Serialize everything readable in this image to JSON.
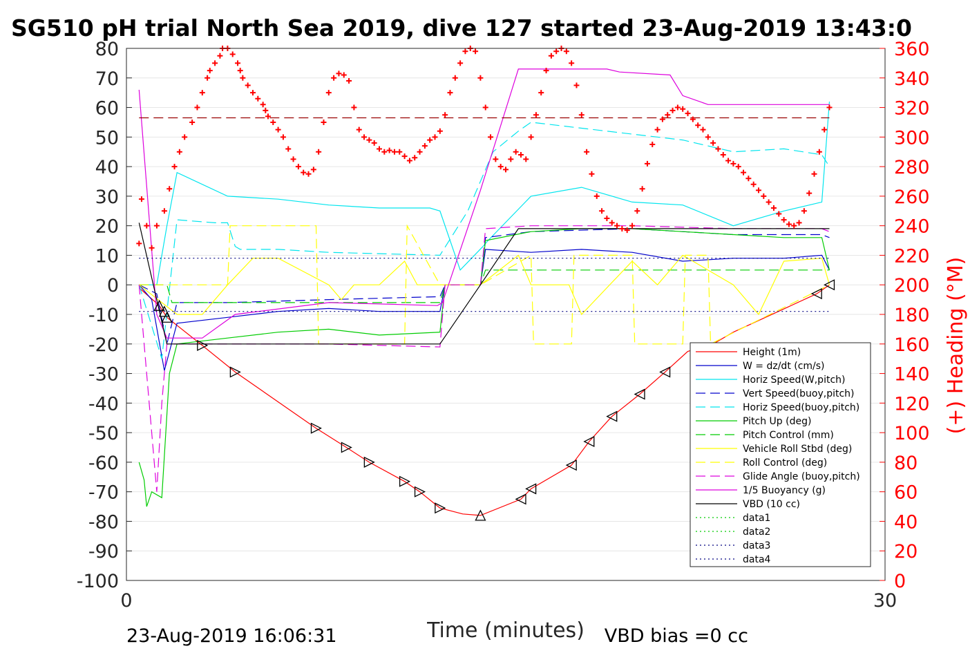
{
  "chart_data": {
    "type": "line",
    "title": "SG510 pH trial North Sea 2019, dive 127 started 23-Aug-2019 13:43:0",
    "xlabel": "Time (minutes)",
    "ylabel": "",
    "ylabel_right": "(+) Heading (°M)",
    "xlim": [
      0,
      30
    ],
    "ylim": [
      -100,
      80
    ],
    "ylim_right": [
      0,
      360
    ],
    "x_ticks": [
      "0",
      "30"
    ],
    "y_ticks": [
      "80",
      "70",
      "60",
      "50",
      "40",
      "30",
      "20",
      "10",
      "0",
      "-10",
      "-20",
      "-30",
      "-40",
      "-50",
      "-60",
      "-70",
      "-80",
      "-90",
      "-100"
    ],
    "y_ticks_right": [
      "360",
      "340",
      "320",
      "300",
      "280",
      "260",
      "240",
      "220",
      "200",
      "180",
      "160",
      "140",
      "120",
      "100",
      "80",
      "60",
      "40",
      "20",
      "0"
    ],
    "grid": "horizontal",
    "legend_position": "bottom-right",
    "footer_left": "23-Aug-2019 16:06:31",
    "footer_right": "VBD bias =0 cc",
    "colors": {
      "red": "#ff0000",
      "blue": "#0000cc",
      "cyan": "#00e5ee",
      "green": "#00cc00",
      "yellow": "#ffff00",
      "magenta": "#dd00dd",
      "black": "#000000",
      "darkred": "#990000",
      "navy": "#000080"
    },
    "series": [
      {
        "name": "Height (1m)",
        "color": "#ff0000",
        "style": "solid",
        "x": [
          0.5,
          1.3,
          1.6,
          3.0,
          4.3,
          7.5,
          8.7,
          9.6,
          11.0,
          11.6,
          12.4,
          13.3,
          14.0,
          15.6,
          16.0,
          17.6,
          18.3,
          19.2,
          20.3,
          21.3,
          22.2,
          23.2,
          24.0,
          27.3,
          27.8
        ],
        "y": [
          -1,
          -7,
          -11,
          -20.5,
          -29.5,
          -48.5,
          -55,
          -60,
          -66.5,
          -70,
          -75.5,
          -77.5,
          -78,
          -72.5,
          -69,
          -61,
          -53,
          -44.5,
          -37,
          -29.5,
          -22.5,
          -20,
          -16,
          -3,
          0
        ]
      },
      {
        "name": "W = dz/dt (cm/s)",
        "color": "#0000cc",
        "style": "solid",
        "x": [
          0.5,
          1.0,
          1.5,
          2.0,
          4.0,
          6.0,
          8.0,
          10.0,
          12.0,
          12.4,
          12.6,
          14.0,
          14.2,
          16.0,
          18.0,
          20.0,
          22.0,
          24.0,
          26.0,
          27.5,
          27.8
        ],
        "y": [
          0,
          -5,
          -29,
          -13,
          -11,
          -9,
          -8,
          -9,
          -9,
          -9,
          0,
          0,
          12,
          11,
          12,
          11,
          8,
          9,
          9,
          10,
          5
        ]
      },
      {
        "name": "Horiz Speed(W,pitch)",
        "color": "#00e5ee",
        "style": "solid",
        "x": [
          0.5,
          1.2,
          1.6,
          2.0,
          4.0,
          6.0,
          8.0,
          10.0,
          12.0,
          12.4,
          13.2,
          14.1,
          14.3,
          16.0,
          18.0,
          20.0,
          22.0,
          24.0,
          26.0,
          27.5,
          27.8
        ],
        "y": [
          0,
          0,
          20,
          38,
          30,
          29,
          27,
          26,
          26,
          25,
          5,
          13,
          15,
          30,
          33,
          28,
          27,
          20,
          25,
          28,
          62
        ]
      },
      {
        "name": "Vert Speed(buoy,pitch)",
        "color": "#0000cc",
        "style": "dashed",
        "x": [
          0.5,
          1.2,
          1.6,
          2.0,
          4.0,
          8.0,
          12.4,
          12.6,
          14.0,
          14.2,
          16.0,
          20.0,
          24.0,
          27.5,
          27.8
        ],
        "y": [
          0,
          -3,
          -20,
          -6,
          -6,
          -5,
          -4,
          0,
          0,
          16,
          18,
          19,
          17,
          17,
          16
        ]
      },
      {
        "name": "Horiz Speed(buoy,pitch)",
        "color": "#00e5ee",
        "style": "dashed",
        "x": [
          0.5,
          1.4,
          2.0,
          3.5,
          4.0,
          4.3,
          4.5,
          6.0,
          8.0,
          12.4,
          13.5,
          14.5,
          15.5,
          16.0,
          18.0,
          20.0,
          22.0,
          24.0,
          26.0,
          27.5,
          27.8
        ],
        "y": [
          0,
          -25,
          22,
          21,
          21,
          13,
          12,
          12,
          11,
          10,
          25,
          45,
          52,
          55,
          53,
          51,
          49,
          45,
          46,
          44,
          40
        ]
      },
      {
        "name": "Pitch Up (deg)",
        "color": "#00cc00",
        "style": "solid",
        "x": [
          0.5,
          0.7,
          0.8,
          1.0,
          1.4,
          1.7,
          2.0,
          4.0,
          6.0,
          8.0,
          10.0,
          12.4,
          12.6,
          14.0,
          14.2,
          16.0,
          18.0,
          20.0,
          22.0,
          24.0,
          26.0,
          27.5,
          27.8
        ],
        "y": [
          -60,
          -66,
          -75,
          -70,
          -72,
          -30,
          -20,
          -18,
          -16,
          -15,
          -17,
          -16,
          0,
          0,
          15,
          18,
          19,
          19,
          18,
          17,
          16,
          16,
          5
        ]
      },
      {
        "name": "Pitch Control (mm)",
        "color": "#00cc00",
        "style": "dashed",
        "x": [
          0.5,
          1.6,
          1.8,
          12.4,
          12.6,
          14.0,
          14.2,
          27.8
        ],
        "y": [
          0,
          0,
          -6,
          -6,
          0,
          0,
          5,
          5
        ]
      },
      {
        "name": "Vehicle Roll Stbd (deg)",
        "color": "#ffff00",
        "style": "solid",
        "x": [
          0.5,
          2.0,
          3.0,
          4.0,
          5.0,
          6.0,
          8.0,
          8.5,
          9.0,
          10.0,
          11.0,
          11.5,
          12.4,
          14.0,
          15.5,
          16.0,
          17.5,
          18.0,
          20.0,
          21.0,
          22.0,
          24.0,
          25.0,
          26.0,
          27.5,
          27.8
        ],
        "y": [
          0,
          -10,
          -10,
          0,
          9,
          9,
          0,
          -5,
          0,
          0,
          8,
          0,
          0,
          0,
          10,
          0,
          0,
          -10,
          8,
          0,
          10,
          0,
          -10,
          8,
          9,
          0
        ]
      },
      {
        "name": "Roll Control (deg)",
        "color": "#ffff00",
        "style": "dashed",
        "x": [
          0.5,
          4.0,
          4.1,
          7.5,
          7.6,
          11.0,
          11.1,
          12.4,
          14.0,
          16.0,
          16.1,
          17.6,
          17.7,
          20.0,
          20.1,
          22.0,
          22.1,
          23.0,
          23.1,
          27.8
        ],
        "y": [
          0,
          0,
          20,
          20,
          -20,
          -20,
          20,
          0,
          0,
          10,
          -20,
          -20,
          10,
          10,
          -20,
          -20,
          10,
          10,
          -20,
          0
        ]
      },
      {
        "name": "Glide Angle (buoy,pitch)",
        "color": "#dd00dd",
        "style": "dashed",
        "x": [
          0.5,
          1.2,
          1.4,
          1.6,
          2.0,
          4.0,
          8.0,
          12.4,
          12.6,
          14.0,
          14.2,
          16.0,
          20.0,
          24.0,
          27.5,
          27.8
        ],
        "y": [
          0,
          -70,
          -40,
          -20,
          -20,
          -20,
          -20,
          -21,
          0,
          0,
          19,
          20,
          20,
          19,
          19,
          18
        ]
      },
      {
        "name": "1/5 Buoyancy (g)",
        "color": "#dd00dd",
        "style": "solid",
        "x": [
          0.5,
          1.2,
          1.6,
          3.0,
          4.3,
          8.0,
          12.3,
          12.5,
          14.0,
          15.5,
          17.0,
          19.0,
          19.5,
          21.5,
          22.0,
          23.0,
          24.0,
          27.8
        ],
        "y": [
          66,
          -10,
          -18,
          -18,
          -10,
          -6,
          -7,
          -6,
          32,
          73,
          73,
          73,
          72,
          71,
          64,
          61,
          61,
          61
        ]
      },
      {
        "name": "VBD (10 cc)",
        "color": "#000000",
        "style": "solid",
        "x": [
          0.5,
          1.6,
          12.4,
          14.0,
          15.5,
          27.8
        ],
        "y": [
          21,
          -20,
          -20,
          0,
          19,
          19
        ]
      },
      {
        "name": "data1",
        "color": "#00cc00",
        "style": "dotted",
        "x": [],
        "y": []
      },
      {
        "name": "data2",
        "color": "#00cc00",
        "style": "dotted",
        "x": [],
        "y": []
      },
      {
        "name": "data3",
        "color": "#000080",
        "style": "dotted",
        "x": [
          0.5,
          27.8
        ],
        "y": [
          9,
          9
        ]
      },
      {
        "name": "data4",
        "color": "#000080",
        "style": "dotted",
        "x": [
          0.5,
          27.8
        ],
        "y": [
          -9,
          -9
        ]
      }
    ],
    "heading_target": {
      "color": "#990000",
      "style": "dashed",
      "y_right": 313
    },
    "heading_points": {
      "color": "#ff0000",
      "marker": "+",
      "x": [
        0.5,
        0.6,
        0.8,
        1.0,
        1.2,
        1.5,
        1.7,
        1.9,
        2.1,
        2.3,
        2.6,
        2.8,
        3.0,
        3.2,
        3.3,
        3.5,
        3.7,
        3.8,
        4.0,
        4.2,
        4.4,
        4.5,
        4.6,
        4.8,
        5.0,
        5.2,
        5.4,
        5.5,
        5.6,
        5.8,
        6.0,
        6.2,
        6.4,
        6.6,
        6.8,
        7.0,
        7.2,
        7.4,
        7.6,
        7.8,
        8.0,
        8.2,
        8.4,
        8.6,
        8.8,
        9.0,
        9.2,
        9.4,
        9.6,
        9.8,
        10.0,
        10.2,
        10.4,
        10.6,
        10.8,
        11.0,
        11.2,
        11.4,
        11.6,
        11.8,
        12.0,
        12.2,
        12.4,
        12.6,
        12.8,
        13.0,
        13.2,
        13.4,
        13.6,
        13.8,
        14.0,
        14.2,
        14.4,
        14.6,
        14.8,
        15.0,
        15.2,
        15.4,
        15.6,
        15.8,
        16.0,
        16.2,
        16.4,
        16.6,
        16.8,
        17.0,
        17.2,
        17.4,
        17.6,
        17.8,
        18.0,
        18.2,
        18.4,
        18.6,
        18.8,
        19.0,
        19.2,
        19.4,
        19.6,
        19.8,
        20.0,
        20.2,
        20.4,
        20.6,
        20.8,
        21.0,
        21.2,
        21.4,
        21.6,
        21.8,
        22.0,
        22.2,
        22.4,
        22.6,
        22.8,
        23.0,
        23.2,
        23.4,
        23.6,
        23.8,
        24.0,
        24.2,
        24.4,
        24.6,
        24.8,
        25.0,
        25.2,
        25.4,
        25.6,
        25.8,
        26.0,
        26.2,
        26.4,
        26.6,
        26.8,
        27.0,
        27.2,
        27.4,
        27.6,
        27.8
      ],
      "y": [
        228,
        258,
        240,
        225,
        240,
        250,
        265,
        280,
        290,
        300,
        310,
        320,
        330,
        340,
        345,
        350,
        355,
        360,
        360,
        356,
        350,
        345,
        340,
        335,
        330,
        326,
        322,
        318,
        314,
        310,
        305,
        300,
        292,
        285,
        280,
        276,
        275,
        278,
        290,
        310,
        330,
        340,
        343,
        342,
        338,
        320,
        305,
        300,
        298,
        296,
        292,
        290,
        291,
        290,
        290,
        287,
        284,
        286,
        290,
        294,
        298,
        300,
        304,
        315,
        330,
        340,
        350,
        358,
        360,
        358,
        340,
        320,
        300,
        285,
        280,
        278,
        285,
        290,
        288,
        285,
        300,
        315,
        330,
        345,
        355,
        358,
        360,
        358,
        350,
        335,
        315,
        290,
        275,
        260,
        250,
        245,
        242,
        240,
        238,
        237,
        240,
        250,
        265,
        282,
        295,
        305,
        312,
        315,
        318,
        320,
        319,
        316,
        312,
        308,
        305,
        300,
        296,
        292,
        288,
        284,
        282,
        280,
        276,
        272,
        268,
        264,
        260,
        256,
        252,
        248,
        244,
        241,
        240,
        242,
        250,
        262,
        275,
        290,
        305,
        320
      ]
    },
    "height_markers": {
      "color": "#000000",
      "x": [
        1.3,
        1.5,
        1.6,
        3.0,
        4.3,
        7.5,
        8.7,
        9.6,
        11.0,
        11.6,
        12.4,
        14.0,
        15.6,
        16.0,
        17.6,
        18.3,
        19.2,
        20.3,
        21.3,
        27.3,
        27.8
      ],
      "y": [
        -7,
        -9,
        -11,
        -20.5,
        -29.5,
        -48.5,
        -55,
        -60,
        -66.5,
        -70,
        -75.5,
        -78,
        -72.5,
        -69,
        -61,
        -53,
        -44.5,
        -37,
        -29.5,
        -3,
        0
      ],
      "dir": [
        "up",
        "up",
        "up",
        "right",
        "right",
        "right",
        "right",
        "right",
        "right",
        "right",
        "right",
        "up",
        "left",
        "left",
        "left",
        "left",
        "left",
        "left",
        "left",
        "left",
        "left"
      ]
    }
  }
}
